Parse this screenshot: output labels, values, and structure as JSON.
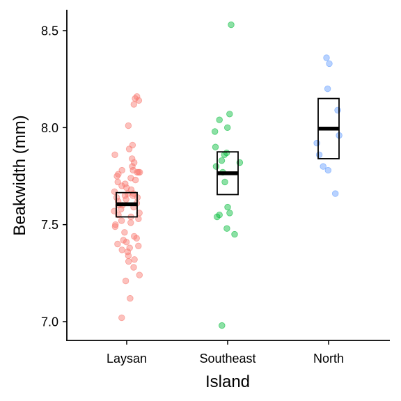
{
  "chart_data": {
    "type": "scatter",
    "xlabel": "Island",
    "ylabel": "Beakwidth (mm)",
    "ylim": [
      6.88,
      8.62
    ],
    "yticks": [
      "7.0",
      "7.5",
      "8.0",
      "8.5"
    ],
    "grid": false,
    "legend": "none",
    "categories": [
      "Laysan",
      "Southeast",
      "North"
    ],
    "colors": {
      "Laysan": "#F8766D",
      "Southeast": "#00BA38",
      "North": "#619CFF"
    },
    "series": [
      {
        "name": "Laysan",
        "values": [
          8.16,
          8.15,
          8.14,
          8.12,
          8.01,
          7.91,
          7.89,
          7.86,
          7.84,
          7.82,
          7.8,
          7.78,
          7.78,
          7.77,
          7.77,
          7.77,
          7.76,
          7.75,
          7.74,
          7.73,
          7.72,
          7.71,
          7.7,
          7.69,
          7.68,
          7.67,
          7.66,
          7.66,
          7.65,
          7.65,
          7.64,
          7.64,
          7.63,
          7.62,
          7.61,
          7.6,
          7.6,
          7.59,
          7.58,
          7.57,
          7.56,
          7.55,
          7.54,
          7.53,
          7.52,
          7.51,
          7.5,
          7.49,
          7.46,
          7.44,
          7.43,
          7.42,
          7.41,
          7.4,
          7.39,
          7.38,
          7.37,
          7.36,
          7.34,
          7.32,
          7.31,
          7.28,
          7.24,
          7.21,
          7.12,
          7.02
        ],
        "mean": 7.605,
        "ci": [
          7.54,
          7.665
        ]
      },
      {
        "name": "Southeast",
        "values": [
          8.53,
          8.07,
          8.04,
          8.0,
          7.98,
          7.9,
          7.87,
          7.86,
          7.83,
          7.82,
          7.8,
          7.77,
          7.72,
          7.59,
          7.56,
          7.55,
          7.54,
          7.48,
          7.45,
          6.98
        ],
        "mean": 7.765,
        "ci": [
          7.655,
          7.875
        ]
      },
      {
        "name": "North",
        "values": [
          8.36,
          8.33,
          8.2,
          8.09,
          7.96,
          7.92,
          7.86,
          7.8,
          7.78,
          7.66
        ],
        "mean": 7.995,
        "ci": [
          7.84,
          8.15
        ]
      }
    ]
  }
}
